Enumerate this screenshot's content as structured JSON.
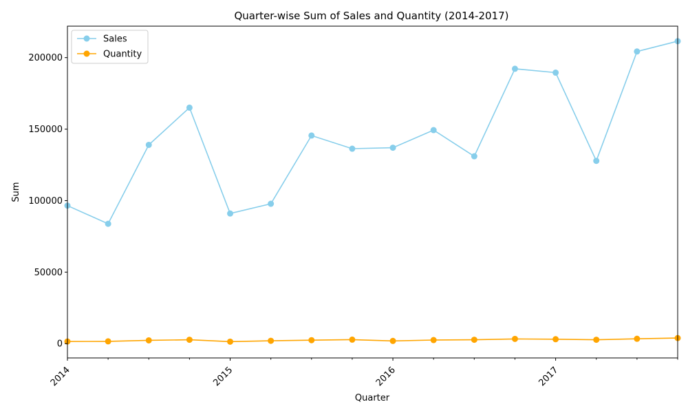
{
  "chart_data": {
    "type": "line",
    "title": "Quarter-wise Sum of Sales and Quantity (2014-2017)",
    "xlabel": "Quarter",
    "ylabel": "Sum",
    "x_tick_labels": [
      "2014",
      "2015",
      "2016",
      "2017"
    ],
    "y_tick_labels": [
      "0",
      "50000",
      "100000",
      "150000",
      "200000"
    ],
    "y_ticks": [
      0,
      50000,
      100000,
      150000,
      200000
    ],
    "xlim": [
      "2014-Q1",
      "2017-Q4"
    ],
    "ylim": [
      -10000,
      222000
    ],
    "x": [
      "2014-Q1",
      "2014-Q2",
      "2014-Q3",
      "2014-Q4",
      "2015-Q1",
      "2015-Q2",
      "2015-Q3",
      "2015-Q4",
      "2016-Q1",
      "2016-Q2",
      "2016-Q3",
      "2016-Q4",
      "2017-Q1",
      "2017-Q2",
      "2017-Q3",
      "2017-Q4"
    ],
    "grid": false,
    "legend_position": "top-left",
    "series": [
      {
        "name": "Sales",
        "color": "#87ceeb",
        "values": [
          96500,
          83800,
          139000,
          165000,
          91000,
          97800,
          145500,
          136300,
          137000,
          149300,
          131000,
          192200,
          189500,
          127800,
          204300,
          211500
        ]
      },
      {
        "name": "Quantity",
        "color": "#ffa500",
        "values": [
          1500,
          1600,
          2300,
          2700,
          1400,
          2000,
          2400,
          2800,
          1900,
          2500,
          2700,
          3300,
          3100,
          2700,
          3400,
          3900
        ]
      }
    ]
  }
}
